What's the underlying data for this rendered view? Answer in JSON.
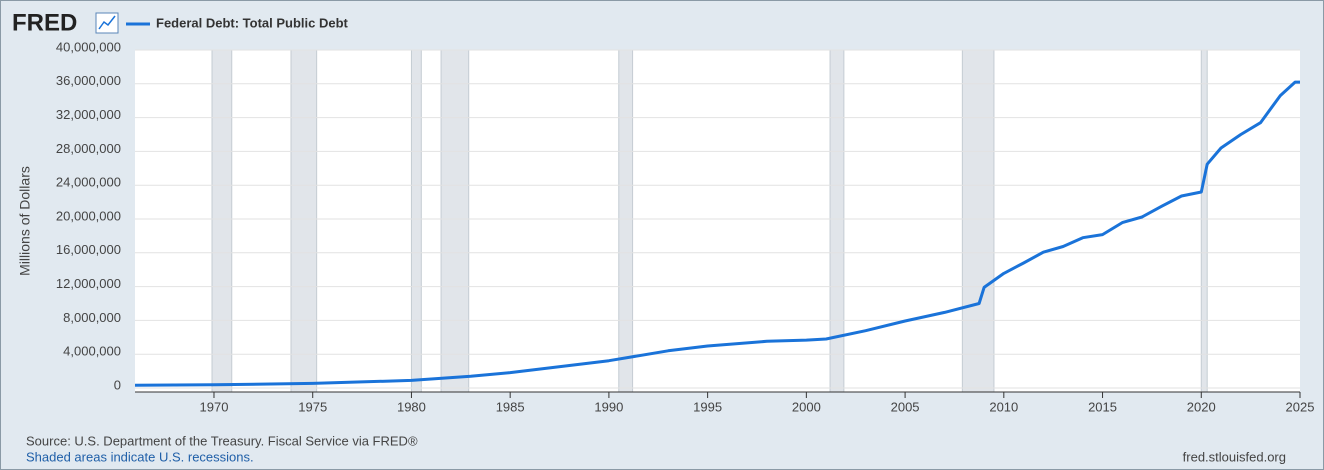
{
  "logo": "FRED",
  "source": "Source: U.S. Department of the Treasury. Fiscal Service via FRED®",
  "note": "Shaded areas indicate U.S. recessions.",
  "site": "fred.stlouisfed.org",
  "chart_data": {
    "type": "line",
    "y_label": "Millions of Dollars",
    "x": [
      1966,
      1970,
      1975,
      1980,
      1983,
      1985,
      1990,
      1993,
      1995,
      1998,
      2000,
      2001,
      2003,
      2005,
      2007,
      2008.75,
      2009,
      2010,
      2011,
      2012,
      2013,
      2014,
      2015,
      2016,
      2017,
      2018,
      2019,
      2020,
      2020.3,
      2021,
      2022,
      2023,
      2024,
      2024.75,
      2025
    ],
    "series": [
      {
        "name": "Federal Debt: Total Public Debt",
        "color": "#1a73d9",
        "values": [
          320000,
          380000,
          540000,
          900000,
          1380000,
          1820000,
          3230000,
          4400000,
          4970000,
          5530000,
          5670000,
          5800000,
          6780000,
          7930000,
          8950000,
          10000000,
          11900000,
          13560000,
          14790000,
          16070000,
          16740000,
          17790000,
          18150000,
          19570000,
          20240000,
          21520000,
          22720000,
          23200000,
          26480000,
          28400000,
          30000000,
          31400000,
          34600000,
          36200000,
          36200000
        ]
      }
    ],
    "recessions": [
      [
        1969.9,
        1970.9
      ],
      [
        1973.9,
        1975.2
      ],
      [
        1980.0,
        1980.5
      ],
      [
        1981.5,
        1982.9
      ],
      [
        1990.5,
        1991.2
      ],
      [
        2001.2,
        2001.9
      ],
      [
        2007.9,
        2009.5
      ],
      [
        2020.0,
        2020.3
      ]
    ],
    "recession_color": "#e1e5ea",
    "xlim": [
      1966,
      2025
    ],
    "xticks": [
      1970,
      1975,
      1980,
      1985,
      1990,
      1995,
      2000,
      2005,
      2010,
      2015,
      2020,
      2025
    ],
    "ylim": [
      0,
      40000000
    ],
    "yticks": [
      0,
      {
        "value": 4000000,
        "label": "4,000,000"
      },
      {
        "value": 8000000,
        "label": "8,000,000"
      },
      {
        "value": 12000000,
        "label": "12,000,000"
      },
      {
        "value": 16000000,
        "label": "16,000,000"
      },
      {
        "value": 20000000,
        "label": "20,000,000"
      },
      {
        "value": 24000000,
        "label": "24,000,000"
      },
      {
        "value": 28000000,
        "label": "28,000,000"
      },
      {
        "value": 32000000,
        "label": "32,000,000"
      },
      {
        "value": 36000000,
        "label": "36,000,000"
      },
      {
        "value": 40000000,
        "label": "40,000,000"
      }
    ],
    "grid": true
  }
}
